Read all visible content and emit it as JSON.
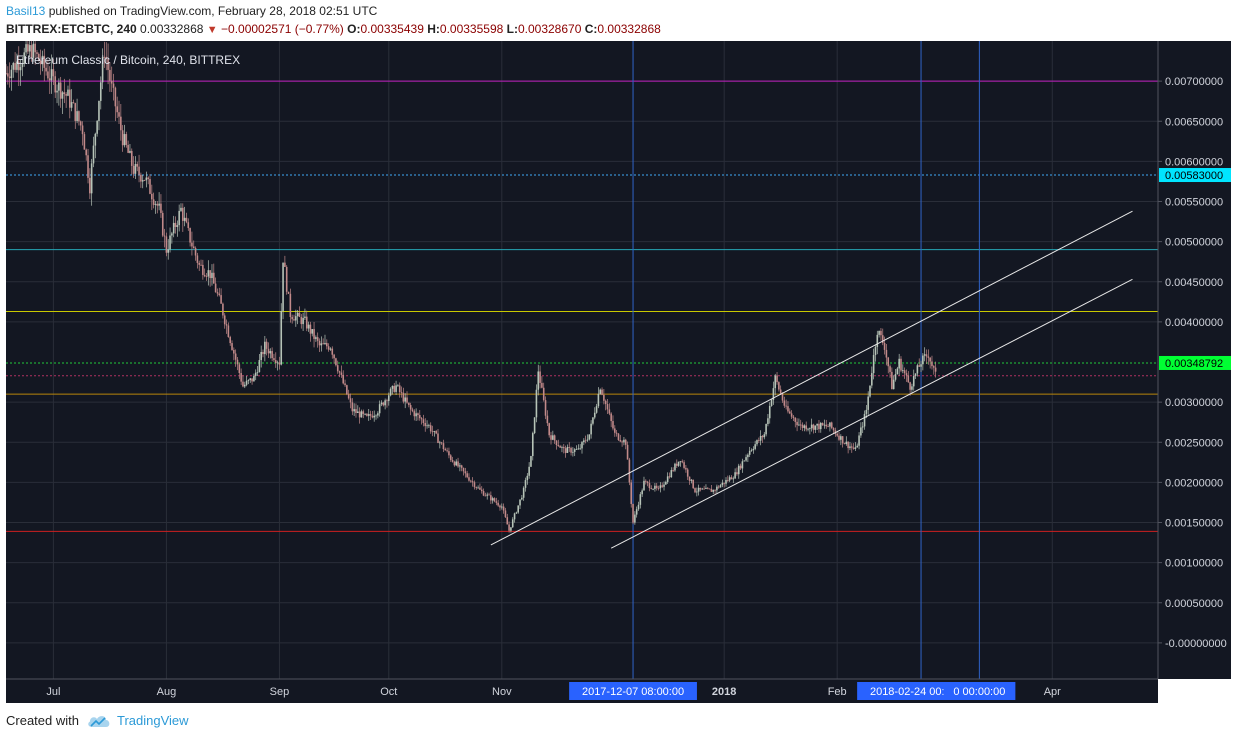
{
  "header": {
    "user": "Basil13",
    "published": " published on TradingView.com, February 28, 2018 02:51 UTC",
    "symbol": "BITTREX:ETCBTC, 240",
    "last": "0.00332868",
    "change": "−0.00002571 (−0.77%)",
    "o_label": "O:",
    "o": "0.00335439",
    "h_label": "H:",
    "h": "0.00335598",
    "l_label": "L:",
    "l": "0.00328670",
    "c_label": "C:",
    "c": "0.00332868"
  },
  "footer": {
    "created": "Created with",
    "brand": "TradingView"
  },
  "colors": {
    "background": "#131722",
    "grid": "#2a2e39",
    "up": "#b7c4b8",
    "down": "#c28a8a",
    "axis_text": "#d1d4dc",
    "cyan_badge": "#00e5ff",
    "green_badge": "#00ff33",
    "date_badge": "#2962ff"
  },
  "chart_data": {
    "type": "candlestick",
    "title": "Ethereum Classic / Bitcoin, 240, BITTREX",
    "y_range": [
      -0.00045,
      0.0075
    ],
    "x_range": [
      "2017-06-18",
      "2018-04-30"
    ],
    "y_ticks": [
      "0.00700000",
      "0.00650000",
      "0.00600000",
      "0.00550000",
      "0.00500000",
      "0.00450000",
      "0.00400000",
      "0.00300000",
      "0.00250000",
      "0.00200000",
      "0.00150000",
      "0.00100000",
      "0.00050000",
      "-0.00000000"
    ],
    "y_tick_values": [
      0.007,
      0.0065,
      0.006,
      0.0055,
      0.005,
      0.0045,
      0.004,
      0.003,
      0.0025,
      0.002,
      0.0015,
      0.001,
      0.0005,
      0
    ],
    "x_ticks": [
      {
        "label": "Jul",
        "date": "2017-07-01",
        "bold": false
      },
      {
        "label": "Aug",
        "date": "2017-08-01",
        "bold": false
      },
      {
        "label": "Sep",
        "date": "2017-09-01",
        "bold": false
      },
      {
        "label": "Oct",
        "date": "2017-10-01",
        "bold": false
      },
      {
        "label": "Nov",
        "date": "2017-11-01",
        "bold": false
      },
      {
        "label": "2018",
        "date": "2018-01-01",
        "bold": true
      },
      {
        "label": "Feb",
        "date": "2018-02-01",
        "bold": false
      },
      {
        "label": "Apr",
        "date": "2018-04-01",
        "bold": false
      }
    ],
    "date_badges": [
      {
        "label": "2017-12-07 08:00:00",
        "date": "2017-12-07"
      },
      {
        "label": "2018-02-24 00:00:00",
        "date": "2018-02-24"
      },
      {
        "label": "0 00:00:00",
        "date": "2018-03-12"
      }
    ],
    "price_badges": [
      {
        "label": "0.00583000",
        "value": 0.00583,
        "color": "#00e5ff"
      },
      {
        "label": "0.00348792",
        "value": 0.00348792,
        "color": "#00ff33"
      }
    ],
    "horizontal_lines": [
      {
        "value": 0.007,
        "color": "#c020c0",
        "style": "solid"
      },
      {
        "value": 0.00583,
        "color": "#3fa9f5",
        "style": "dotted"
      },
      {
        "value": 0.0049,
        "color": "#26a6b5",
        "style": "solid"
      },
      {
        "value": 0.00413,
        "color": "#c8c800",
        "style": "solid"
      },
      {
        "value": 0.00348792,
        "color": "#22c83a",
        "style": "dotted"
      },
      {
        "value": 0.00332868,
        "color": "#b03060",
        "style": "dotted"
      },
      {
        "value": 0.0031,
        "color": "#b8860b",
        "style": "solid"
      },
      {
        "value": 0.00139,
        "color": "#cc2020",
        "style": "solid"
      }
    ],
    "vertical_lines": [
      "2017-12-07",
      "2018-02-24",
      "2018-03-12"
    ],
    "trend_lines": [
      {
        "from": [
          "2017-10-29",
          0.00122
        ],
        "to": [
          "2018-04-23",
          0.00538
        ],
        "color": "#e8e8e8"
      },
      {
        "from": [
          "2017-12-01",
          0.00118
        ],
        "to": [
          "2018-04-23",
          0.00453
        ],
        "color": "#e8e8e8"
      }
    ],
    "price_path": [
      [
        "2017-06-18",
        0.0071
      ],
      [
        "2017-06-25",
        0.0074
      ],
      [
        "2017-07-01",
        0.007
      ],
      [
        "2017-07-05",
        0.0068
      ],
      [
        "2017-07-09",
        0.0064
      ],
      [
        "2017-07-11",
        0.0057
      ],
      [
        "2017-07-13",
        0.0066
      ],
      [
        "2017-07-15",
        0.0074
      ],
      [
        "2017-07-17",
        0.0069
      ],
      [
        "2017-07-20",
        0.0063
      ],
      [
        "2017-07-23",
        0.0059
      ],
      [
        "2017-07-26",
        0.0058
      ],
      [
        "2017-07-30",
        0.0054
      ],
      [
        "2017-08-01",
        0.0049
      ],
      [
        "2017-08-05",
        0.0054
      ],
      [
        "2017-08-07",
        0.0051
      ],
      [
        "2017-08-10",
        0.0047
      ],
      [
        "2017-08-13",
        0.0046
      ],
      [
        "2017-08-16",
        0.0042
      ],
      [
        "2017-08-19",
        0.0037
      ],
      [
        "2017-08-22",
        0.0032
      ],
      [
        "2017-08-25",
        0.0033
      ],
      [
        "2017-08-28",
        0.0037
      ],
      [
        "2017-09-01",
        0.0035
      ],
      [
        "2017-09-02",
        0.0048
      ],
      [
        "2017-09-04",
        0.0041
      ],
      [
        "2017-09-08",
        0.004
      ],
      [
        "2017-09-12",
        0.0037
      ],
      [
        "2017-09-15",
        0.0037
      ],
      [
        "2017-09-18",
        0.0033
      ],
      [
        "2017-09-21",
        0.0029
      ],
      [
        "2017-09-25",
        0.0028
      ],
      [
        "2017-09-28",
        0.0029
      ],
      [
        "2017-10-01",
        0.0031
      ],
      [
        "2017-10-03",
        0.0032
      ],
      [
        "2017-10-07",
        0.0029
      ],
      [
        "2017-10-12",
        0.0027
      ],
      [
        "2017-10-15",
        0.0025
      ],
      [
        "2017-10-18",
        0.0023
      ],
      [
        "2017-10-22",
        0.0021
      ],
      [
        "2017-10-26",
        0.0019
      ],
      [
        "2017-10-29",
        0.0018
      ],
      [
        "2017-11-01",
        0.0017
      ],
      [
        "2017-11-03",
        0.0014
      ],
      [
        "2017-11-07",
        0.0019
      ],
      [
        "2017-11-09",
        0.0023
      ],
      [
        "2017-11-11",
        0.0034
      ],
      [
        "2017-11-14",
        0.0026
      ],
      [
        "2017-11-18",
        0.0024
      ],
      [
        "2017-11-22",
        0.0024
      ],
      [
        "2017-11-25",
        0.0026
      ],
      [
        "2017-11-28",
        0.0032
      ],
      [
        "2017-12-02",
        0.0026
      ],
      [
        "2017-12-05",
        0.0025
      ],
      [
        "2017-12-07",
        0.0015
      ],
      [
        "2017-12-10",
        0.002
      ],
      [
        "2017-12-14",
        0.0019
      ],
      [
        "2017-12-17",
        0.0021
      ],
      [
        "2017-12-20",
        0.0023
      ],
      [
        "2017-12-24",
        0.0019
      ],
      [
        "2017-12-29",
        0.0019
      ],
      [
        "2018-01-01",
        0.002
      ],
      [
        "2018-01-04",
        0.0021
      ],
      [
        "2018-01-08",
        0.0024
      ],
      [
        "2018-01-12",
        0.0026
      ],
      [
        "2018-01-15",
        0.0033
      ],
      [
        "2018-01-18",
        0.0029
      ],
      [
        "2018-01-22",
        0.0027
      ],
      [
        "2018-01-26",
        0.0027
      ],
      [
        "2018-01-30",
        0.0027
      ],
      [
        "2018-02-03",
        0.0025
      ],
      [
        "2018-02-06",
        0.0024
      ],
      [
        "2018-02-09",
        0.0029
      ],
      [
        "2018-02-12",
        0.0039
      ],
      [
        "2018-02-14",
        0.0037
      ],
      [
        "2018-02-16",
        0.0032
      ],
      [
        "2018-02-18",
        0.0035
      ],
      [
        "2018-02-21",
        0.0032
      ],
      [
        "2018-02-24",
        0.0035
      ],
      [
        "2018-02-26",
        0.0036
      ],
      [
        "2018-02-28",
        0.00332868
      ]
    ]
  }
}
